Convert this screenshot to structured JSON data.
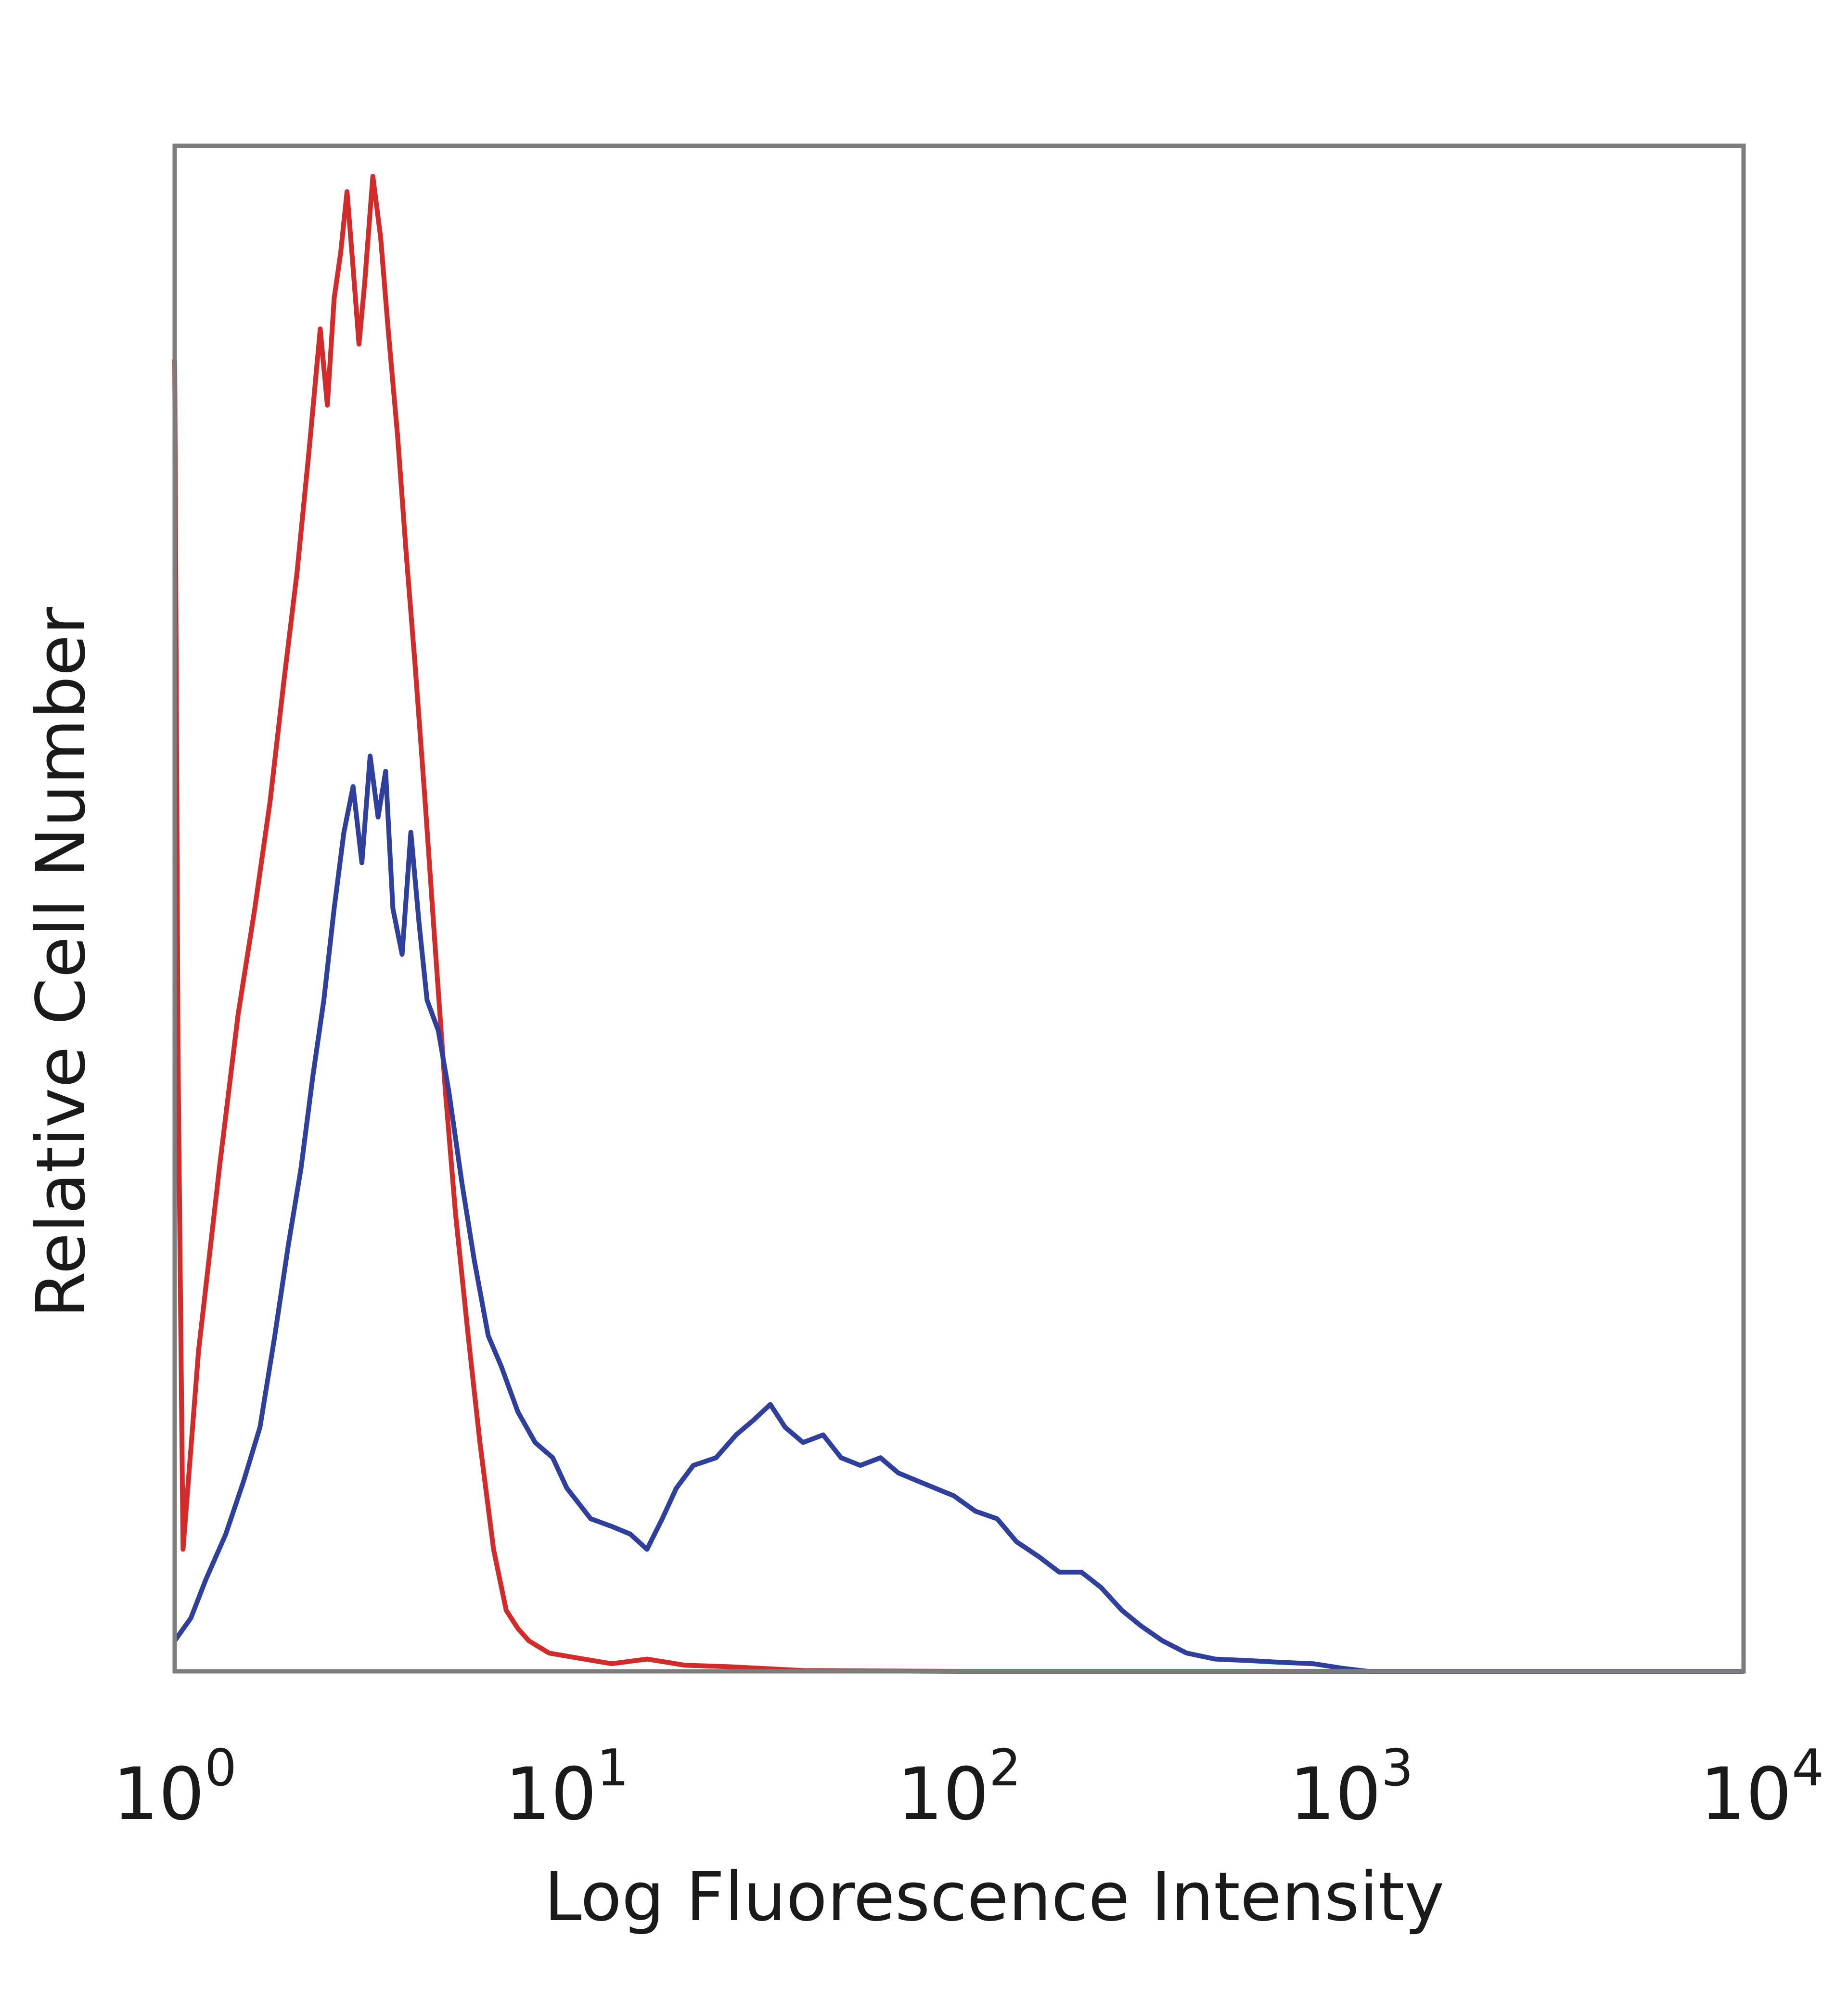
{
  "chart_data": {
    "type": "line",
    "xlabel": "Log Fluorescence Intensity",
    "ylabel": "Relative Cell Number",
    "x_scale": "log",
    "xlim": [
      1,
      10000
    ],
    "ylim": [
      0,
      100
    ],
    "grid": false,
    "x_ticks": [
      {
        "value": 1,
        "base": "10",
        "exp": "0"
      },
      {
        "value": 10,
        "base": "10",
        "exp": "1"
      },
      {
        "value": 100,
        "base": "10",
        "exp": "2"
      },
      {
        "value": 1000,
        "base": "10",
        "exp": "3"
      },
      {
        "value": 10000,
        "base": "10",
        "exp": "4"
      }
    ],
    "series": [
      {
        "color": "#d42a2a",
        "points": [
          [
            1.0,
            86
          ],
          [
            1.02,
            40
          ],
          [
            1.05,
            8
          ],
          [
            1.15,
            21
          ],
          [
            1.3,
            33
          ],
          [
            1.45,
            43
          ],
          [
            1.6,
            50
          ],
          [
            1.75,
            57
          ],
          [
            1.9,
            65
          ],
          [
            2.05,
            72
          ],
          [
            2.2,
            80
          ],
          [
            2.35,
            88
          ],
          [
            2.45,
            83
          ],
          [
            2.55,
            90
          ],
          [
            2.65,
            93
          ],
          [
            2.75,
            97
          ],
          [
            2.85,
            92
          ],
          [
            2.95,
            87
          ],
          [
            3.05,
            91
          ],
          [
            3.2,
            98
          ],
          [
            3.35,
            94
          ],
          [
            3.5,
            88
          ],
          [
            3.7,
            81
          ],
          [
            3.9,
            73
          ],
          [
            4.1,
            66
          ],
          [
            4.35,
            57
          ],
          [
            4.6,
            48
          ],
          [
            4.9,
            38
          ],
          [
            5.2,
            30
          ],
          [
            5.6,
            22
          ],
          [
            6.0,
            15
          ],
          [
            6.5,
            8
          ],
          [
            7.0,
            4
          ],
          [
            7.5,
            2.8
          ],
          [
            8.0,
            2.0
          ],
          [
            9.0,
            1.2
          ],
          [
            10.5,
            0.9
          ],
          [
            13.0,
            0.5
          ],
          [
            16.0,
            0.8
          ],
          [
            20.0,
            0.4
          ],
          [
            26.0,
            0.3
          ],
          [
            40.0,
            0.05
          ],
          [
            100.0,
            0.0
          ],
          [
            1000.0,
            0.0
          ],
          [
            10000.0,
            0.0
          ]
        ]
      },
      {
        "color": "#2e3f9e",
        "points": [
          [
            1.0,
            2
          ],
          [
            1.1,
            3.5
          ],
          [
            1.2,
            6
          ],
          [
            1.35,
            9
          ],
          [
            1.5,
            12.5
          ],
          [
            1.65,
            16
          ],
          [
            1.8,
            22
          ],
          [
            1.95,
            28
          ],
          [
            2.1,
            33
          ],
          [
            2.25,
            39
          ],
          [
            2.4,
            44
          ],
          [
            2.55,
            50
          ],
          [
            2.7,
            55
          ],
          [
            2.85,
            58
          ],
          [
            3.0,
            53
          ],
          [
            3.15,
            60
          ],
          [
            3.3,
            56
          ],
          [
            3.45,
            59
          ],
          [
            3.6,
            50
          ],
          [
            3.8,
            47
          ],
          [
            4.0,
            55
          ],
          [
            4.2,
            49
          ],
          [
            4.4,
            44
          ],
          [
            4.7,
            42
          ],
          [
            5.0,
            38
          ],
          [
            5.4,
            32
          ],
          [
            5.8,
            27
          ],
          [
            6.3,
            22
          ],
          [
            6.8,
            20
          ],
          [
            7.5,
            17
          ],
          [
            8.3,
            15
          ],
          [
            9.2,
            14
          ],
          [
            10.0,
            12
          ],
          [
            11.5,
            10
          ],
          [
            13.0,
            9.5
          ],
          [
            14.5,
            9
          ],
          [
            16.0,
            8
          ],
          [
            17.5,
            10
          ],
          [
            19.0,
            12
          ],
          [
            21.0,
            13.5
          ],
          [
            24.0,
            14
          ],
          [
            27.0,
            15.5
          ],
          [
            30.0,
            16.5
          ],
          [
            33.0,
            17.5
          ],
          [
            36.0,
            16
          ],
          [
            40.0,
            15
          ],
          [
            45.0,
            15.5
          ],
          [
            50.0,
            14
          ],
          [
            56.0,
            13.5
          ],
          [
            63.0,
            14
          ],
          [
            70.0,
            13
          ],
          [
            78.0,
            12.5
          ],
          [
            87.0,
            12
          ],
          [
            97.0,
            11.5
          ],
          [
            110.0,
            10.5
          ],
          [
            125.0,
            10
          ],
          [
            140.0,
            8.5
          ],
          [
            160.0,
            7.5
          ],
          [
            180.0,
            6.5
          ],
          [
            205.0,
            6.5
          ],
          [
            230.0,
            5.5
          ],
          [
            260.0,
            4
          ],
          [
            290.0,
            3
          ],
          [
            330.0,
            2
          ],
          [
            380.0,
            1.2
          ],
          [
            450.0,
            0.8
          ],
          [
            550.0,
            0.7
          ],
          [
            650.0,
            0.6
          ],
          [
            800.0,
            0.5
          ],
          [
            950.0,
            0.2
          ],
          [
            1100.0,
            0.0
          ],
          [
            10000.0,
            0.0
          ]
        ]
      }
    ]
  }
}
